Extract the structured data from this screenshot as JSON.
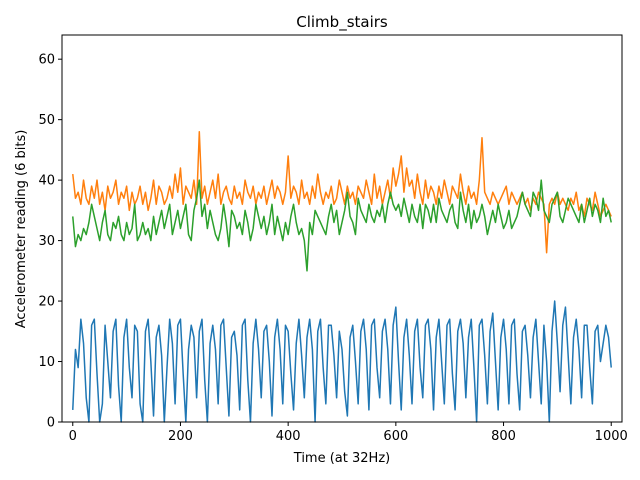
{
  "chart_data": {
    "type": "line",
    "title": "Climb_stairs",
    "xlabel": "Time (at 32Hz)",
    "ylabel": "Accelerometer reading (6 bits)",
    "xlim": [
      -20,
      1020
    ],
    "ylim": [
      0,
      64
    ],
    "x_ticks": [
      0,
      200,
      400,
      600,
      800,
      1000
    ],
    "y_ticks": [
      0,
      10,
      20,
      30,
      40,
      50,
      60
    ],
    "grid": false,
    "series": [
      {
        "color": "#1f77b4",
        "x": [
          0,
          5,
          10,
          15,
          20,
          25,
          30,
          35,
          40,
          45,
          50,
          55,
          60,
          65,
          70,
          75,
          80,
          85,
          90,
          95,
          100,
          105,
          110,
          115,
          120,
          125,
          130,
          135,
          140,
          145,
          150,
          155,
          160,
          165,
          170,
          175,
          180,
          185,
          190,
          195,
          200,
          205,
          210,
          215,
          220,
          225,
          230,
          235,
          240,
          245,
          250,
          255,
          260,
          265,
          270,
          275,
          280,
          285,
          290,
          295,
          300,
          305,
          310,
          315,
          320,
          325,
          330,
          335,
          340,
          345,
          350,
          355,
          360,
          365,
          370,
          375,
          380,
          385,
          390,
          395,
          400,
          405,
          410,
          415,
          420,
          425,
          430,
          435,
          440,
          445,
          450,
          455,
          460,
          465,
          470,
          475,
          480,
          485,
          490,
          495,
          500,
          505,
          510,
          515,
          520,
          525,
          530,
          535,
          540,
          545,
          550,
          555,
          560,
          565,
          570,
          575,
          580,
          585,
          590,
          595,
          600,
          605,
          610,
          615,
          620,
          625,
          630,
          635,
          640,
          645,
          650,
          655,
          660,
          665,
          670,
          675,
          680,
          685,
          690,
          695,
          700,
          705,
          710,
          715,
          720,
          725,
          730,
          735,
          740,
          745,
          750,
          755,
          760,
          765,
          770,
          775,
          780,
          785,
          790,
          795,
          800,
          805,
          810,
          815,
          820,
          825,
          830,
          835,
          840,
          845,
          850,
          855,
          860,
          865,
          870,
          875,
          880,
          885,
          890,
          895,
          900,
          905,
          910,
          915,
          920,
          925,
          930,
          935,
          940,
          945,
          950,
          955,
          960,
          965,
          970,
          975,
          980,
          985,
          990,
          995,
          1000
        ],
        "y": [
          2,
          12,
          9,
          17,
          13,
          4,
          0,
          16,
          17,
          8,
          0,
          3,
          16,
          10,
          4,
          15,
          17,
          6,
          0,
          14,
          17,
          9,
          4,
          16,
          15,
          3,
          0,
          15,
          17,
          10,
          1,
          14,
          16,
          11,
          0,
          9,
          17,
          13,
          3,
          16,
          17,
          8,
          0,
          12,
          16,
          14,
          4,
          15,
          17,
          7,
          0,
          13,
          16,
          12,
          3,
          16,
          17,
          9,
          1,
          14,
          15,
          11,
          2,
          16,
          17,
          7,
          0,
          13,
          17,
          12,
          4,
          15,
          16,
          10,
          1,
          14,
          17,
          12,
          3,
          16,
          15,
          8,
          2,
          13,
          17,
          11,
          4,
          14,
          17,
          12,
          0,
          15,
          17,
          9,
          3,
          16,
          16,
          11,
          4,
          15,
          12,
          5,
          1,
          14,
          16,
          10,
          3,
          15,
          17,
          12,
          2,
          16,
          17,
          9,
          4,
          15,
          17,
          12,
          3,
          16,
          19,
          10,
          2,
          14,
          17,
          11,
          3,
          15,
          17,
          9,
          4,
          16,
          17,
          12,
          2,
          14,
          17,
          10,
          3,
          16,
          17,
          8,
          2,
          15,
          17,
          13,
          4,
          14,
          17,
          9,
          0,
          16,
          17,
          11,
          3,
          15,
          18,
          10,
          2,
          14,
          17,
          12,
          3,
          16,
          17,
          8,
          2,
          15,
          16,
          11,
          4,
          14,
          17,
          10,
          3,
          16,
          10,
          0,
          15,
          20,
          13,
          5,
          16,
          19,
          11,
          3,
          14,
          17,
          12,
          4,
          16,
          16,
          9,
          3,
          15,
          16,
          10,
          13,
          16,
          14,
          9
        ],
        "name": ""
      },
      {
        "color": "#ff7f0e",
        "x": [
          0,
          5,
          10,
          15,
          20,
          25,
          30,
          35,
          40,
          45,
          50,
          55,
          60,
          65,
          70,
          75,
          80,
          85,
          90,
          95,
          100,
          105,
          110,
          115,
          120,
          125,
          130,
          135,
          140,
          145,
          150,
          155,
          160,
          165,
          170,
          175,
          180,
          185,
          190,
          195,
          200,
          205,
          210,
          215,
          220,
          225,
          230,
          235,
          240,
          245,
          250,
          255,
          260,
          265,
          270,
          275,
          280,
          285,
          290,
          295,
          300,
          305,
          310,
          315,
          320,
          325,
          330,
          335,
          340,
          345,
          350,
          355,
          360,
          365,
          370,
          375,
          380,
          385,
          390,
          395,
          400,
          405,
          410,
          415,
          420,
          425,
          430,
          435,
          440,
          445,
          450,
          455,
          460,
          465,
          470,
          475,
          480,
          485,
          490,
          495,
          500,
          505,
          510,
          515,
          520,
          525,
          530,
          535,
          540,
          545,
          550,
          555,
          560,
          565,
          570,
          575,
          580,
          585,
          590,
          595,
          600,
          605,
          610,
          615,
          620,
          625,
          630,
          635,
          640,
          645,
          650,
          655,
          660,
          665,
          670,
          675,
          680,
          685,
          690,
          695,
          700,
          705,
          710,
          715,
          720,
          725,
          730,
          735,
          740,
          745,
          750,
          755,
          760,
          765,
          770,
          775,
          780,
          785,
          790,
          795,
          800,
          805,
          810,
          815,
          820,
          825,
          830,
          835,
          840,
          845,
          850,
          855,
          860,
          865,
          870,
          875,
          880,
          885,
          890,
          895,
          900,
          905,
          910,
          915,
          920,
          925,
          930,
          935,
          940,
          945,
          950,
          955,
          960,
          965,
          970,
          975,
          980,
          985,
          990,
          995,
          1000
        ],
        "y": [
          41,
          37,
          38,
          36,
          40,
          37,
          36,
          39,
          37,
          40,
          36,
          38,
          35,
          39,
          37,
          38,
          40,
          36,
          38,
          37,
          39,
          35,
          38,
          36,
          37,
          39,
          36,
          38,
          35,
          37,
          40,
          36,
          39,
          38,
          36,
          37,
          39,
          37,
          41,
          38,
          42,
          36,
          39,
          38,
          37,
          40,
          36,
          48,
          37,
          39,
          36,
          38,
          40,
          37,
          41,
          36,
          38,
          39,
          37,
          36,
          39,
          37,
          38,
          36,
          40,
          38,
          37,
          39,
          36,
          38,
          37,
          39,
          36,
          38,
          40,
          37,
          39,
          38,
          36,
          38,
          44,
          37,
          39,
          38,
          36,
          40,
          37,
          38,
          36,
          39,
          37,
          41,
          38,
          36,
          38,
          37,
          39,
          36,
          37,
          40,
          38,
          36,
          39,
          37,
          38,
          36,
          39,
          38,
          37,
          40,
          38,
          36,
          41,
          37,
          39,
          36,
          38,
          40,
          37,
          42,
          39,
          41,
          44,
          38,
          42,
          39,
          40,
          37,
          41,
          38,
          36,
          40,
          37,
          39,
          38,
          36,
          39,
          37,
          40,
          38,
          36,
          39,
          38,
          37,
          41,
          38,
          36,
          39,
          37,
          38,
          36,
          40,
          47,
          38,
          37,
          36,
          38,
          37,
          36,
          37,
          38,
          39,
          36,
          38,
          37,
          36,
          37,
          38,
          36,
          37,
          35,
          37,
          36,
          38,
          37,
          36,
          28,
          36,
          37,
          36,
          38,
          36,
          37,
          36,
          35,
          37,
          36,
          38,
          35,
          36,
          34,
          37,
          36,
          35,
          38,
          36,
          34,
          35,
          36,
          35,
          34
        ],
        "name": ""
      },
      {
        "color": "#2ca02c",
        "x": [
          0,
          5,
          10,
          15,
          20,
          25,
          30,
          35,
          40,
          45,
          50,
          55,
          60,
          65,
          70,
          75,
          80,
          85,
          90,
          95,
          100,
          105,
          110,
          115,
          120,
          125,
          130,
          135,
          140,
          145,
          150,
          155,
          160,
          165,
          170,
          175,
          180,
          185,
          190,
          195,
          200,
          205,
          210,
          215,
          220,
          225,
          230,
          235,
          240,
          245,
          250,
          255,
          260,
          265,
          270,
          275,
          280,
          285,
          290,
          295,
          300,
          305,
          310,
          315,
          320,
          325,
          330,
          335,
          340,
          345,
          350,
          355,
          360,
          365,
          370,
          375,
          380,
          385,
          390,
          395,
          400,
          405,
          410,
          415,
          420,
          425,
          430,
          435,
          440,
          445,
          450,
          455,
          460,
          465,
          470,
          475,
          480,
          485,
          490,
          495,
          500,
          505,
          510,
          515,
          520,
          525,
          530,
          535,
          540,
          545,
          550,
          555,
          560,
          565,
          570,
          575,
          580,
          585,
          590,
          595,
          600,
          605,
          610,
          615,
          620,
          625,
          630,
          635,
          640,
          645,
          650,
          655,
          660,
          665,
          670,
          675,
          680,
          685,
          690,
          695,
          700,
          705,
          710,
          715,
          720,
          725,
          730,
          735,
          740,
          745,
          750,
          755,
          760,
          765,
          770,
          775,
          780,
          785,
          790,
          795,
          800,
          805,
          810,
          815,
          820,
          825,
          830,
          835,
          840,
          845,
          850,
          855,
          860,
          865,
          870,
          875,
          880,
          885,
          890,
          895,
          900,
          905,
          910,
          915,
          920,
          925,
          930,
          935,
          940,
          945,
          950,
          955,
          960,
          965,
          970,
          975,
          980,
          985,
          990,
          995,
          1000
        ],
        "y": [
          34,
          29,
          31,
          30,
          32,
          31,
          33,
          36,
          34,
          32,
          30,
          33,
          35,
          31,
          30,
          33,
          32,
          34,
          31,
          30,
          33,
          31,
          32,
          36,
          30,
          31,
          33,
          31,
          32,
          30,
          34,
          31,
          33,
          35,
          32,
          34,
          36,
          31,
          33,
          35,
          32,
          34,
          36,
          31,
          30,
          35,
          37,
          40,
          34,
          36,
          32,
          35,
          33,
          31,
          30,
          32,
          36,
          33,
          29,
          35,
          34,
          32,
          33,
          31,
          35,
          33,
          30,
          32,
          36,
          34,
          32,
          34,
          31,
          33,
          36,
          31,
          34,
          32,
          30,
          33,
          31,
          34,
          36,
          33,
          31,
          32,
          30,
          25,
          33,
          31,
          35,
          34,
          33,
          32,
          31,
          34,
          36,
          33,
          35,
          31,
          33,
          35,
          38,
          34,
          33,
          31,
          37,
          35,
          34,
          33,
          36,
          34,
          33,
          35,
          34,
          36,
          33,
          36,
          38,
          36,
          35,
          36,
          34,
          37,
          35,
          33,
          36,
          34,
          33,
          36,
          32,
          36,
          35,
          33,
          36,
          33,
          37,
          35,
          34,
          33,
          35,
          36,
          33,
          32,
          38,
          35,
          33,
          36,
          32,
          35,
          33,
          34,
          36,
          34,
          31,
          33,
          35,
          33,
          36,
          34,
          32,
          33,
          35,
          32,
          33,
          34,
          36,
          38,
          36,
          35,
          34,
          38,
          37,
          35,
          40,
          35,
          34,
          33,
          36,
          37,
          38,
          34,
          33,
          35,
          37,
          36,
          35,
          34,
          33,
          36,
          33,
          35,
          37,
          34,
          36,
          35,
          33,
          37,
          34,
          35,
          33
        ],
        "name": ""
      }
    ]
  }
}
